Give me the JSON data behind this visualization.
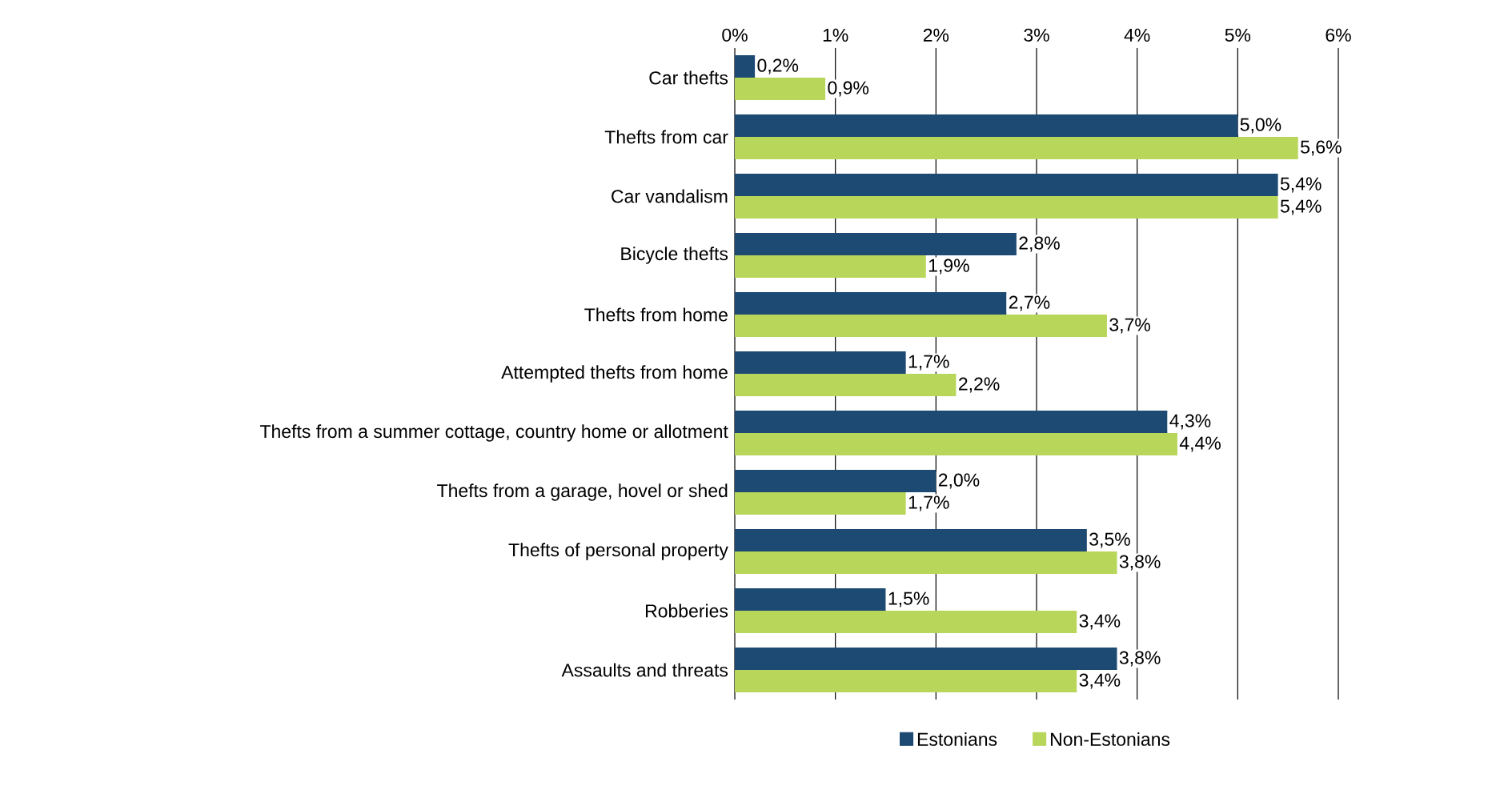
{
  "chart_data": {
    "type": "bar",
    "orientation": "horizontal",
    "categories": [
      "Car thefts",
      "Thefts from car",
      "Car vandalism",
      "Bicycle thefts",
      "Thefts from home",
      "Attempted thefts from home",
      "Thefts from a summer cottage, country home or allotment",
      "Thefts from a garage, hovel or shed",
      "Thefts of personal property",
      "Robberies",
      "Assaults and threats"
    ],
    "series": [
      {
        "name": "Estonians",
        "color": "#1c4a72",
        "values": [
          0.2,
          5.0,
          5.4,
          2.8,
          2.7,
          1.7,
          4.3,
          2.0,
          3.5,
          1.5,
          3.8
        ],
        "value_labels": [
          "0,2%",
          "5,0%",
          "5,4%",
          "2,8%",
          "2,7%",
          "1,7%",
          "4,3%",
          "2,0%",
          "3,5%",
          "1,5%",
          "3,8%"
        ]
      },
      {
        "name": "Non-Estonians",
        "color": "#b8d65a",
        "values": [
          0.9,
          5.6,
          5.4,
          1.9,
          3.7,
          2.2,
          4.4,
          1.7,
          3.8,
          3.4,
          3.4
        ],
        "value_labels": [
          "0,9%",
          "5,6%",
          "5,4%",
          "1,9%",
          "3,7%",
          "2,2%",
          "4,4%",
          "1,7%",
          "3,8%",
          "3,4%",
          "3,4%"
        ]
      }
    ],
    "xlim": [
      0,
      6
    ],
    "xticks": [
      {
        "value": 0,
        "label": "0%"
      },
      {
        "value": 1,
        "label": "1%"
      },
      {
        "value": 2,
        "label": "2%"
      },
      {
        "value": 3,
        "label": "3%"
      },
      {
        "value": 4,
        "label": "4%"
      },
      {
        "value": 5,
        "label": "5%"
      },
      {
        "value": 6,
        "label": "6%"
      }
    ],
    "grid": "x",
    "legend": "bottom"
  }
}
